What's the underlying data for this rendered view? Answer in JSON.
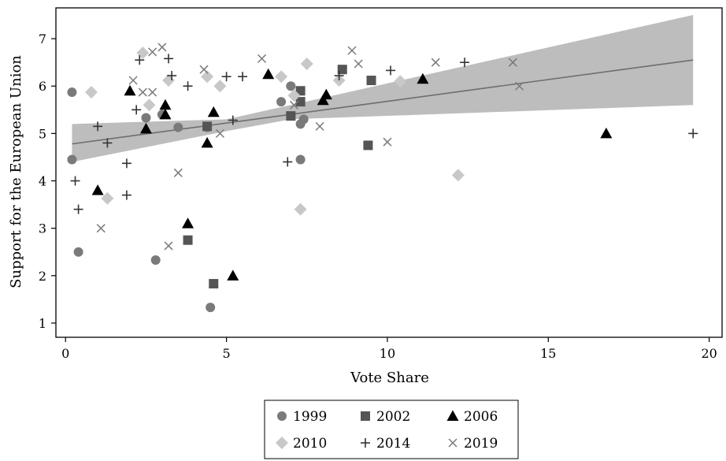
{
  "chart_data": {
    "type": "scatter",
    "title": "",
    "xlabel": "Vote Share",
    "ylabel": "Support for the European Union",
    "xlim": [
      -0.3,
      20.4
    ],
    "ylim": [
      0.7,
      7.65
    ],
    "xticks": [
      0,
      5,
      10,
      15,
      20
    ],
    "yticks": [
      1,
      2,
      3,
      4,
      5,
      6,
      7
    ],
    "grid": false,
    "legend_placement": "bottom",
    "fit": {
      "type": "linear",
      "x_range": [
        0.2,
        19.5
      ],
      "y_at_x_start": 4.78,
      "y_at_x_end": 6.55,
      "ci_lower": [
        [
          0.2,
          4.4
        ],
        [
          5.0,
          5.05
        ],
        [
          7.0,
          5.3
        ],
        [
          19.5,
          5.6
        ]
      ],
      "ci_upper": [
        [
          0.2,
          5.2
        ],
        [
          5.0,
          5.3
        ],
        [
          7.0,
          5.6
        ],
        [
          19.5,
          7.5
        ]
      ],
      "line_color": "#6e6e6e",
      "band_color": "#bdbdbd"
    },
    "series": [
      {
        "name": "1999",
        "marker": "circle",
        "color": "#7a7a7a",
        "points": [
          [
            0.2,
            5.87
          ],
          [
            0.2,
            4.45
          ],
          [
            0.4,
            2.5
          ],
          [
            2.5,
            5.33
          ],
          [
            2.8,
            2.33
          ],
          [
            3.0,
            5.4
          ],
          [
            3.5,
            5.13
          ],
          [
            4.4,
            5.13
          ],
          [
            4.5,
            1.33
          ],
          [
            6.7,
            5.67
          ],
          [
            7.0,
            6.0
          ],
          [
            7.3,
            5.2
          ],
          [
            7.3,
            4.45
          ],
          [
            7.4,
            5.3
          ]
        ]
      },
      {
        "name": "2002",
        "marker": "square",
        "color": "#555555",
        "points": [
          [
            3.8,
            2.75
          ],
          [
            4.4,
            5.15
          ],
          [
            4.6,
            1.83
          ],
          [
            7.0,
            5.37
          ],
          [
            7.3,
            5.9
          ],
          [
            7.3,
            5.67
          ],
          [
            8.6,
            6.35
          ],
          [
            9.4,
            4.75
          ],
          [
            9.5,
            6.12
          ]
        ]
      },
      {
        "name": "2006",
        "marker": "triangle",
        "color": "#000000",
        "points": [
          [
            1.0,
            3.8
          ],
          [
            2.0,
            5.9
          ],
          [
            2.5,
            5.1
          ],
          [
            3.1,
            5.6
          ],
          [
            3.1,
            5.4
          ],
          [
            3.8,
            3.1
          ],
          [
            4.4,
            4.8
          ],
          [
            4.6,
            5.45
          ],
          [
            5.2,
            2.0
          ],
          [
            6.3,
            6.25
          ],
          [
            8.0,
            5.7
          ],
          [
            8.1,
            5.82
          ],
          [
            11.1,
            6.15
          ],
          [
            16.8,
            5.0
          ]
        ]
      },
      {
        "name": "2010",
        "marker": "diamond",
        "color": "#c8c8c8",
        "points": [
          [
            0.8,
            5.87
          ],
          [
            1.3,
            3.63
          ],
          [
            2.4,
            6.7
          ],
          [
            2.6,
            5.6
          ],
          [
            3.2,
            6.12
          ],
          [
            4.4,
            6.2
          ],
          [
            4.8,
            6.0
          ],
          [
            6.7,
            6.2
          ],
          [
            7.1,
            5.8
          ],
          [
            7.3,
            3.4
          ],
          [
            7.5,
            6.47
          ],
          [
            8.5,
            6.12
          ],
          [
            10.4,
            6.1
          ],
          [
            12.2,
            4.12
          ]
        ]
      },
      {
        "name": "2014",
        "marker": "plus",
        "color": "#333333",
        "points": [
          [
            0.3,
            4.0
          ],
          [
            0.4,
            3.4
          ],
          [
            1.0,
            5.15
          ],
          [
            1.3,
            4.8
          ],
          [
            1.9,
            4.37
          ],
          [
            1.9,
            3.7
          ],
          [
            2.2,
            5.5
          ],
          [
            2.3,
            6.55
          ],
          [
            3.2,
            6.58
          ],
          [
            3.3,
            6.22
          ],
          [
            3.8,
            6.0
          ],
          [
            5.0,
            6.2
          ],
          [
            5.2,
            5.28
          ],
          [
            5.5,
            6.2
          ],
          [
            6.9,
            4.4
          ],
          [
            8.5,
            6.22
          ],
          [
            10.1,
            6.33
          ],
          [
            12.4,
            6.5
          ],
          [
            19.5,
            5.0
          ]
        ]
      },
      {
        "name": "2019",
        "marker": "x",
        "color": "#7a7a7a",
        "points": [
          [
            1.1,
            3.0
          ],
          [
            2.1,
            6.12
          ],
          [
            2.4,
            5.87
          ],
          [
            2.7,
            6.72
          ],
          [
            2.7,
            5.87
          ],
          [
            3.0,
            6.82
          ],
          [
            3.2,
            2.63
          ],
          [
            3.5,
            4.17
          ],
          [
            4.3,
            6.35
          ],
          [
            4.8,
            5.0
          ],
          [
            6.1,
            6.58
          ],
          [
            7.1,
            5.6
          ],
          [
            7.9,
            5.15
          ],
          [
            8.9,
            6.75
          ],
          [
            9.1,
            6.47
          ],
          [
            10.0,
            4.82
          ],
          [
            11.5,
            6.5
          ],
          [
            13.9,
            6.5
          ],
          [
            14.1,
            6.0
          ]
        ]
      }
    ]
  }
}
